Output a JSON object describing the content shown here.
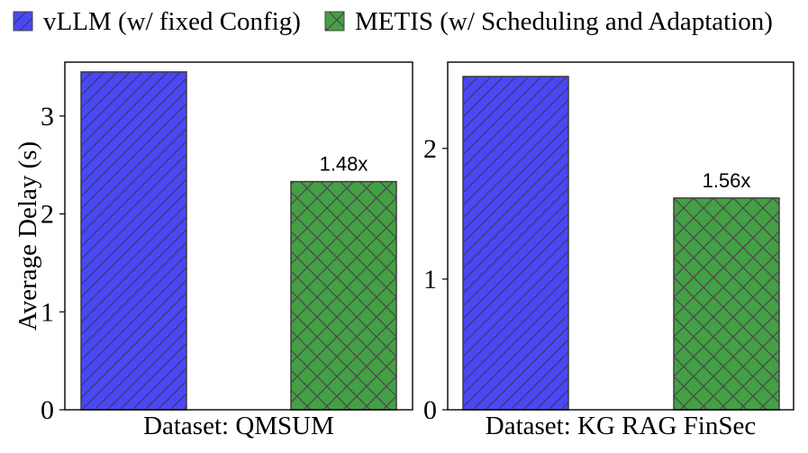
{
  "legend": {
    "position": "top-center",
    "items": [
      {
        "label": "vLLM (w/ fixed Config)",
        "color": "#4a47f5",
        "hatch": "diagonal"
      },
      {
        "label": "METIS (w/ Scheduling and Adaptation)",
        "color": "#44a044",
        "hatch": "crosshatch"
      }
    ]
  },
  "ylabel": "Average Delay (s)",
  "chart_data": [
    {
      "type": "bar",
      "xlabel": "Dataset: QMSUM",
      "ylabel": "Average Delay (s)",
      "ylim": [
        0,
        3.55
      ],
      "yticks": [
        0,
        1,
        2,
        3
      ],
      "grid": false,
      "series": [
        {
          "name": "vLLM (w/ fixed Config)",
          "values": [
            3.45
          ]
        },
        {
          "name": "METIS (w/ Scheduling and Adaptation)",
          "values": [
            2.33
          ]
        }
      ],
      "annotations": [
        {
          "series": 1,
          "text": "1.48x"
        }
      ]
    },
    {
      "type": "bar",
      "xlabel": "Dataset: KG RAG FinSec",
      "ylabel": "",
      "ylim": [
        0,
        2.66
      ],
      "yticks": [
        0,
        1,
        2
      ],
      "grid": false,
      "series": [
        {
          "name": "vLLM (w/ fixed Config)",
          "values": [
            2.55
          ]
        },
        {
          "name": "METIS (w/ Scheduling and Adaptation)",
          "values": [
            1.62
          ]
        }
      ],
      "annotations": [
        {
          "series": 1,
          "text": "1.56x"
        }
      ]
    }
  ]
}
